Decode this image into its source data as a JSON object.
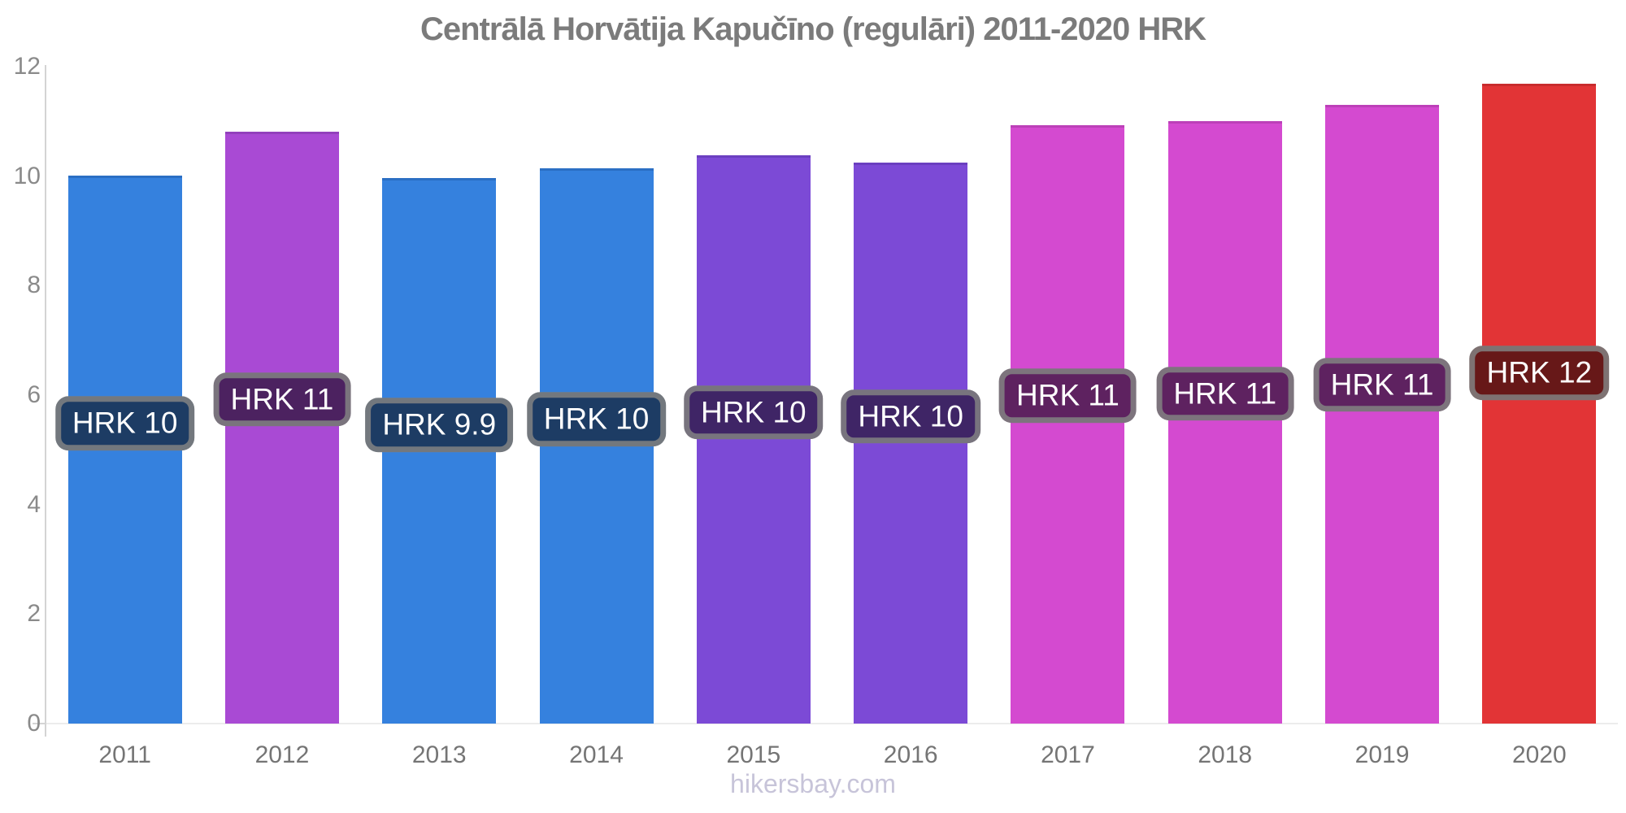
{
  "title": "Centrālā Horvātija Kapučīno (regulāri) 2011-2020 HRK",
  "watermark": "hikersbay.com",
  "colors": {
    "title_text": "#7b7b7b",
    "axis_text": "#8a8a8a",
    "x_label_text": "#757575",
    "axis_line": "#d4d4d4",
    "baseline": "#ececec",
    "label_text": "#ffffff",
    "label_border": "rgba(130,130,130,0.85)",
    "watermark_text": "#c7c4d9"
  },
  "chart_data": {
    "type": "bar",
    "title": "Centrālā Horvātija Kapučīno (regulāri) 2011-2020 HRK",
    "xlabel": "",
    "ylabel": "",
    "ylim": [
      0,
      12
    ],
    "yticks": [
      0,
      2,
      4,
      6,
      8,
      10,
      12
    ],
    "grid": false,
    "legend": false,
    "categories": [
      "2011",
      "2012",
      "2013",
      "2014",
      "2015",
      "2016",
      "2017",
      "2018",
      "2019",
      "2020"
    ],
    "values": [
      9.97,
      10.76,
      9.92,
      10.1,
      10.33,
      10.21,
      10.89,
      10.96,
      11.25,
      11.65
    ],
    "bar_labels": [
      "HRK 10",
      "HRK 11",
      "HRK 9.9",
      "HRK 10",
      "HRK 10",
      "HRK 10",
      "HRK 11",
      "HRK 11",
      "HRK 11",
      "HRK 12"
    ],
    "bar_colors": [
      "#3581de",
      "#a94ad4",
      "#3581de",
      "#3581de",
      "#7c4ad6",
      "#7c4ad6",
      "#d44ad0",
      "#d44ad0",
      "#d44ad0",
      "#e23436"
    ],
    "bar_top_border_colors": [
      "#2b6fc4",
      "#9340bc",
      "#2b6fc4",
      "#2b6fc4",
      "#6b3fc0",
      "#6b3fc0",
      "#bc40b8",
      "#bc40b8",
      "#bc40b8",
      "#c92b2d"
    ],
    "bar_label_bg_colors": [
      "#1d3c64",
      "#4c2260",
      "#1d3c64",
      "#1d3c64",
      "#3f2566",
      "#3f2566",
      "#5e2260",
      "#5e2260",
      "#5e2260",
      "#671818"
    ]
  }
}
